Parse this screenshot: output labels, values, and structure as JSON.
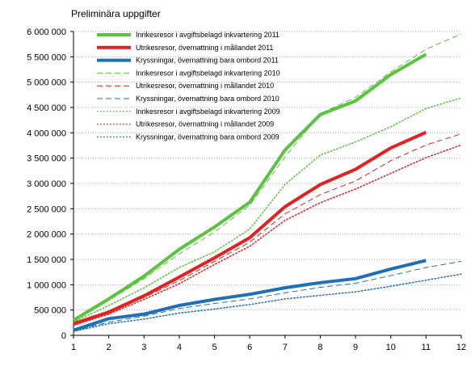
{
  "chart_data": {
    "type": "line",
    "subtitle": "Preliminära uppgifter",
    "x": [
      1,
      2,
      3,
      4,
      5,
      6,
      7,
      8,
      9,
      10,
      11,
      12
    ],
    "x_tick_labels": [
      "1",
      "2",
      "3",
      "4",
      "5",
      "6",
      "7",
      "8",
      "9",
      "10",
      "11",
      "12"
    ],
    "ylim": [
      0,
      6000000
    ],
    "y_ticks": [
      0,
      500000,
      1000000,
      1500000,
      2000000,
      2500000,
      3000000,
      3500000,
      4000000,
      4500000,
      5000000,
      5500000,
      6000000
    ],
    "y_tick_labels": [
      "0",
      "500 000",
      "1 000 000",
      "1 500 000",
      "2 000 000",
      "2 500 000",
      "3 000 000",
      "3 500 000",
      "4 000 000",
      "4 500 000",
      "5 000 000",
      "5 500 000",
      "6 000 000"
    ],
    "grid": "horizontal",
    "legend_position": "top-left",
    "series": [
      {
        "name": "Inrikesresor i avgiftsbelagd inkvartering 2011",
        "color": "#5ac43f",
        "style": "solid",
        "width": 4,
        "values": [
          300000,
          720000,
          1170000,
          1700000,
          2140000,
          2630000,
          3660000,
          4360000,
          4630000,
          5150000,
          5550000,
          null
        ]
      },
      {
        "name": "Utrikesresor, övernattning i mållandet 2011",
        "color": "#e81f1f",
        "style": "solid",
        "width": 4,
        "values": [
          230000,
          460000,
          780000,
          1150000,
          1530000,
          1930000,
          2540000,
          2980000,
          3280000,
          3700000,
          4010000,
          null
        ]
      },
      {
        "name": "Kryssningar, övernattning bara ombord 2011",
        "color": "#1f6fb5",
        "style": "solid",
        "width": 4,
        "values": [
          100000,
          330000,
          420000,
          590000,
          710000,
          810000,
          940000,
          1040000,
          1120000,
          1310000,
          1480000,
          null
        ]
      },
      {
        "name": "Inrikesresor i avgiftsbelagd inkvartering 2010",
        "color": "#5ac43f",
        "style": "dashed",
        "width": 1,
        "values": [
          270000,
          690000,
          1120000,
          1610000,
          2040000,
          2570000,
          3520000,
          4380000,
          4700000,
          5200000,
          5650000,
          5950000
        ]
      },
      {
        "name": "Utrikesresor, övernattning i mållandet 2010",
        "color": "#e81f1f",
        "style": "dashed",
        "width": 1,
        "values": [
          210000,
          440000,
          750000,
          1080000,
          1460000,
          1840000,
          2400000,
          2780000,
          3050000,
          3450000,
          3760000,
          3980000
        ]
      },
      {
        "name": "Kryssningar, övernattning bara ombord 2010",
        "color": "#1f6fb5",
        "style": "dashed",
        "width": 1,
        "values": [
          90000,
          260000,
          380000,
          530000,
          630000,
          720000,
          840000,
          950000,
          1030000,
          1180000,
          1340000,
          1460000
        ]
      },
      {
        "name": "Inrikesresor i avgiftsbelagd inkvartering 2009",
        "color": "#5ac43f",
        "style": "dotted",
        "width": 1.5,
        "values": [
          260000,
          590000,
          940000,
          1340000,
          1650000,
          2100000,
          2980000,
          3560000,
          3820000,
          4120000,
          4480000,
          4690000
        ]
      },
      {
        "name": "Utrikesresor, övernattning i mållandet 2009",
        "color": "#e81f1f",
        "style": "dotted",
        "width": 1.5,
        "values": [
          200000,
          420000,
          710000,
          1020000,
          1400000,
          1760000,
          2270000,
          2620000,
          2890000,
          3200000,
          3510000,
          3760000
        ]
      },
      {
        "name": "Kryssningar, övernattning bara ombord 2009",
        "color": "#1f6fb5",
        "style": "dotted",
        "width": 1.5,
        "values": [
          80000,
          230000,
          320000,
          440000,
          520000,
          610000,
          720000,
          790000,
          860000,
          970000,
          1090000,
          1210000
        ]
      }
    ]
  }
}
